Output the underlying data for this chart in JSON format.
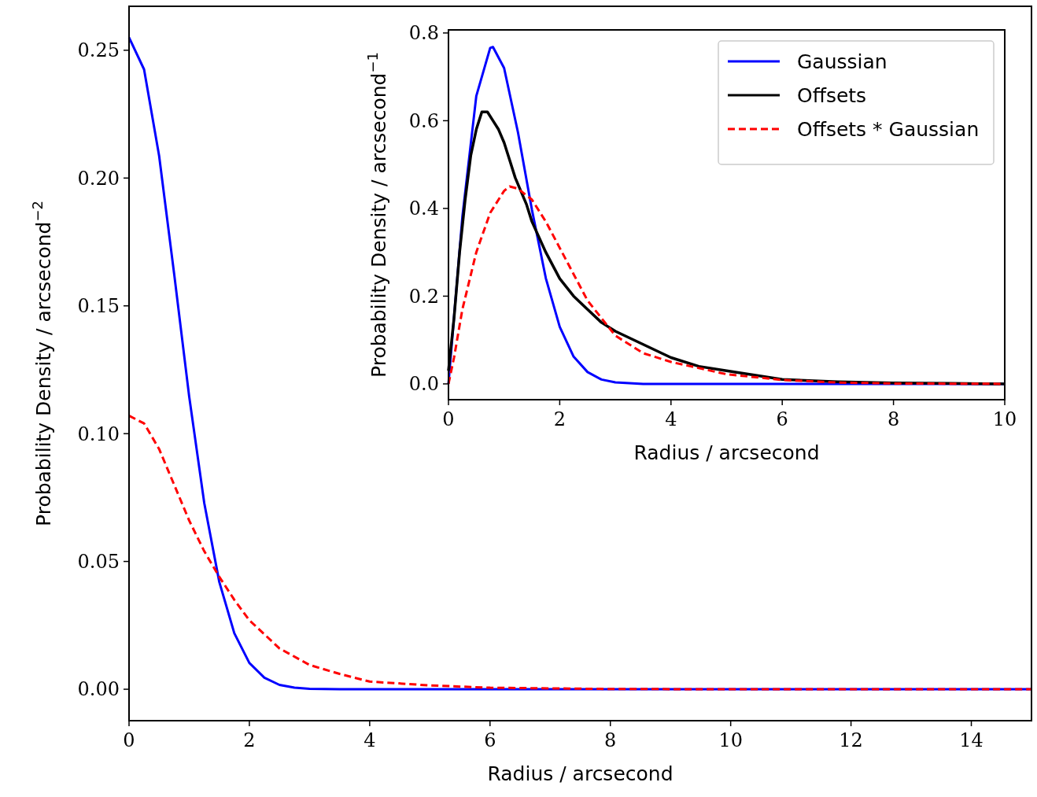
{
  "chart_data": [
    {
      "type": "line",
      "xlabel": "Radius / arcsecond",
      "ylabel": "Probability Density / arcsecond$^{−2}$",
      "xlim": [
        0,
        15
      ],
      "ylim": [
        -0.0123,
        0.2672
      ],
      "xticks": [
        0,
        2,
        4,
        6,
        8,
        10,
        12,
        14
      ],
      "yticks": [
        {
          "value": 0,
          "label": "0.00"
        },
        {
          "value": 0.05,
          "label": "0.05"
        },
        {
          "value": 0.1,
          "label": "0.10"
        },
        {
          "value": 0.15,
          "label": "0.15"
        },
        {
          "value": 0.2,
          "label": "0.20"
        },
        {
          "value": 0.25,
          "label": "0.25"
        }
      ],
      "grid": false,
      "legend": false,
      "series": [
        {
          "color": "#0000ff",
          "line_style": "solid",
          "x": [
            0,
            0.25,
            0.5,
            0.75,
            1,
            1.25,
            1.5,
            1.75,
            2,
            2.25,
            2.5,
            2.75,
            3,
            3.5,
            4,
            6,
            8,
            10,
            12,
            15
          ],
          "values": [
            0.255,
            0.2425,
            0.2087,
            0.1625,
            0.1145,
            0.0729,
            0.042,
            0.0219,
            0.0103,
            0.0045,
            0.0017,
            0.0006,
            0.0002,
            0,
            0,
            0,
            0,
            0,
            0,
            0
          ]
        },
        {
          "color": "#ff0000",
          "line_style": "dashed",
          "x": [
            0,
            0.25,
            0.5,
            0.75,
            1,
            1.25,
            1.5,
            1.75,
            2,
            2.5,
            3,
            3.5,
            4,
            5,
            6,
            8,
            10,
            12,
            15
          ],
          "values": [
            0.107,
            0.104,
            0.094,
            0.08,
            0.066,
            0.054,
            0.044,
            0.035,
            0.027,
            0.016,
            0.0095,
            0.006,
            0.003,
            0.0015,
            0.0006,
            0.0001,
            0,
            0,
            0
          ]
        }
      ]
    },
    {
      "type": "line",
      "xlabel": "Radius / arcsecond",
      "ylabel": "Probability Density / arcsecond$^{−1}$",
      "xlim": [
        0,
        10
      ],
      "ylim": [
        -0.036,
        0.807
      ],
      "xticks": [
        0,
        2,
        4,
        6,
        8,
        10
      ],
      "yticks": [
        {
          "value": 0,
          "label": "0.0"
        },
        {
          "value": 0.2,
          "label": "0.2"
        },
        {
          "value": 0.4,
          "label": "0.4"
        },
        {
          "value": 0.6,
          "label": "0.6"
        },
        {
          "value": 0.8,
          "label": "0.8"
        }
      ],
      "grid": false,
      "legend": "top right",
      "series": [
        {
          "name": "Gaussian",
          "color": "#0000ff",
          "line_style": "solid",
          "x": [
            0,
            0.25,
            0.5,
            0.75,
            0.8,
            1,
            1.25,
            1.5,
            1.75,
            2,
            2.25,
            2.5,
            2.75,
            3,
            3.5,
            4,
            6,
            8,
            10
          ],
          "values": [
            0,
            0.381,
            0.656,
            0.766,
            0.768,
            0.72,
            0.573,
            0.397,
            0.241,
            0.13,
            0.062,
            0.027,
            0.01,
            0.0036,
            0,
            0,
            0,
            0,
            0
          ]
        },
        {
          "name": "Offsets",
          "color": "#000000",
          "line_style": "solid",
          "x": [
            0,
            0.1,
            0.2,
            0.3,
            0.4,
            0.5,
            0.6,
            0.7,
            0.8,
            0.9,
            1,
            1.1,
            1.2,
            1.3,
            1.4,
            1.5,
            1.75,
            2,
            2.25,
            2.5,
            2.75,
            3,
            3.5,
            4,
            4.5,
            5,
            5.5,
            6,
            7,
            8,
            9,
            10
          ],
          "values": [
            0.03,
            0.15,
            0.3,
            0.42,
            0.52,
            0.58,
            0.62,
            0.62,
            0.6,
            0.58,
            0.55,
            0.51,
            0.47,
            0.44,
            0.41,
            0.37,
            0.3,
            0.24,
            0.2,
            0.17,
            0.14,
            0.12,
            0.09,
            0.06,
            0.04,
            0.03,
            0.02,
            0.01,
            0.005,
            0.002,
            0.001,
            0
          ]
        },
        {
          "name": "Offsets * Gaussian",
          "color": "#ff0000",
          "line_style": "dashed",
          "x": [
            0,
            0.1,
            0.25,
            0.5,
            0.75,
            1,
            1.1,
            1.25,
            1.5,
            1.75,
            2,
            2.5,
            3,
            3.5,
            4,
            5,
            6,
            7,
            8,
            10
          ],
          "values": [
            0,
            0.06,
            0.17,
            0.3,
            0.39,
            0.44,
            0.45,
            0.445,
            0.42,
            0.37,
            0.31,
            0.19,
            0.11,
            0.07,
            0.05,
            0.022,
            0.009,
            0.003,
            0.001,
            0
          ]
        }
      ]
    }
  ]
}
